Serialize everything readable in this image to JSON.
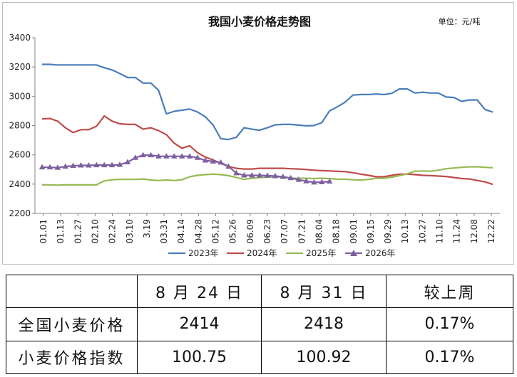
{
  "chart_data": {
    "type": "line",
    "title": "我国小麦价格走势图",
    "unit": "单位：元/吨",
    "xlabel": "",
    "ylabel": "",
    "ylim": [
      2200,
      3400
    ],
    "yticks": [
      2200,
      2400,
      2600,
      2800,
      3000,
      3200,
      3400
    ],
    "grid": false,
    "legend_position": "bottom",
    "x_tick_labels": [
      "01.01",
      "01.13",
      "01.27",
      "02.10",
      "02.24",
      "03.10",
      "3.19",
      "03.31",
      "04.14",
      "04.28",
      "05.12",
      "05.26",
      "06.09",
      "06.23",
      "07.07",
      "07.21",
      "08.04",
      "08.18",
      "09.01",
      "09.15",
      "09.29",
      "10.13",
      "10.27",
      "11.10",
      "11.24",
      "12.08",
      "12.22"
    ],
    "series": [
      {
        "name": "2023年",
        "color": "#4a7ebb",
        "marker": "none",
        "values": [
          3218,
          3218,
          3214,
          3214,
          3214,
          3214,
          3214,
          3214,
          3195,
          3180,
          3155,
          3128,
          3128,
          3090,
          3090,
          3040,
          2880,
          2897,
          2905,
          2912,
          2893,
          2860,
          2805,
          2710,
          2705,
          2720,
          2785,
          2775,
          2768,
          2785,
          2805,
          2808,
          2808,
          2803,
          2798,
          2800,
          2820,
          2900,
          2928,
          2960,
          3008,
          3012,
          3012,
          3015,
          3012,
          3020,
          3050,
          3050,
          3022,
          3028,
          3022,
          3022,
          2995,
          2992,
          2965,
          2975,
          2975,
          2910,
          2892
        ]
      },
      {
        "name": "2024年",
        "color": "#be4b48",
        "marker": "none",
        "values": [
          2845,
          2848,
          2830,
          2785,
          2752,
          2772,
          2772,
          2795,
          2865,
          2830,
          2812,
          2808,
          2808,
          2775,
          2785,
          2765,
          2738,
          2680,
          2645,
          2662,
          2615,
          2585,
          2565,
          2542,
          2520,
          2508,
          2503,
          2503,
          2508,
          2508,
          2508,
          2508,
          2505,
          2503,
          2500,
          2495,
          2492,
          2490,
          2487,
          2485,
          2478,
          2468,
          2460,
          2450,
          2450,
          2460,
          2468,
          2468,
          2465,
          2460,
          2458,
          2455,
          2452,
          2445,
          2438,
          2435,
          2425,
          2415,
          2398
        ]
      },
      {
        "name": "2025年",
        "color": "#98b954",
        "marker": "none",
        "values": [
          2395,
          2395,
          2393,
          2395,
          2395,
          2395,
          2395,
          2395,
          2422,
          2430,
          2432,
          2432,
          2432,
          2435,
          2428,
          2425,
          2428,
          2425,
          2430,
          2450,
          2460,
          2465,
          2468,
          2465,
          2458,
          2445,
          2432,
          2440,
          2445,
          2448,
          2450,
          2448,
          2440,
          2440,
          2440,
          2438,
          2440,
          2438,
          2433,
          2433,
          2430,
          2428,
          2432,
          2440,
          2440,
          2448,
          2458,
          2470,
          2488,
          2490,
          2488,
          2495,
          2505,
          2510,
          2515,
          2518,
          2518,
          2515,
          2512
        ]
      },
      {
        "name": "2026年",
        "color": "#7d60a0",
        "marker": "triangle",
        "values": [
          2515,
          2515,
          2512,
          2520,
          2525,
          2528,
          2528,
          2530,
          2530,
          2530,
          2532,
          2550,
          2580,
          2598,
          2598,
          2590,
          2590,
          2590,
          2590,
          2590,
          2580,
          2562,
          2555,
          2548,
          2520,
          2475,
          2460,
          2460,
          2460,
          2458,
          2455,
          2450,
          2442,
          2430,
          2420,
          2412,
          2414,
          2418
        ]
      }
    ]
  },
  "table": {
    "header": [
      "",
      "8 月 24 日",
      "8 月 31 日",
      "较上周"
    ],
    "rows": [
      {
        "label": "全国小麦价格",
        "cells": [
          "2414",
          "2418",
          "0.17%"
        ]
      },
      {
        "label": "小麦价格指数",
        "cells": [
          "100.75",
          "100.92",
          "0.17%"
        ]
      }
    ]
  }
}
